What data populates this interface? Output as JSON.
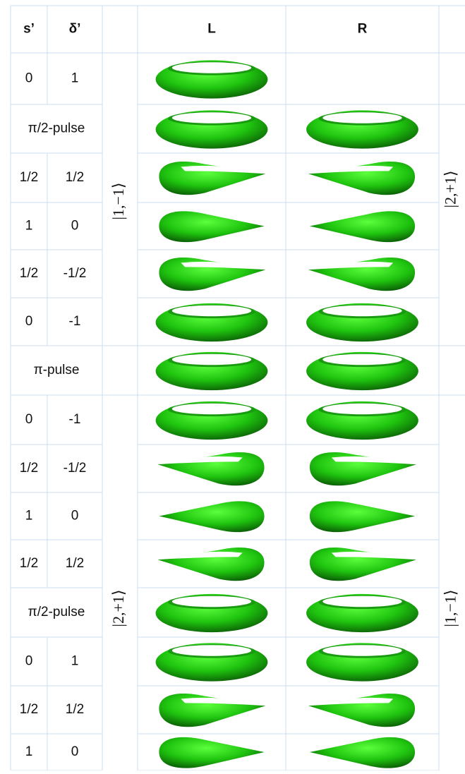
{
  "header": {
    "s": "s’",
    "delta": "δ’",
    "L": "L",
    "R": "R"
  },
  "rows": [
    [
      "0",
      "1"
    ],
    [
      "π/2-pulse"
    ],
    [
      "1/2",
      "1/2"
    ],
    [
      "1",
      "0"
    ],
    [
      "1/2",
      "-1/2"
    ],
    [
      "0",
      "-1"
    ],
    [
      "π-pulse"
    ],
    [
      "0",
      "-1"
    ],
    [
      "1/2",
      "-1/2"
    ],
    [
      "1",
      "0"
    ],
    [
      "1/2",
      "1/2"
    ],
    [
      "π/2-pulse"
    ],
    [
      "0",
      "1"
    ],
    [
      "1/2",
      "1/2"
    ],
    [
      "1",
      "0"
    ]
  ],
  "states": {
    "left": [
      "|1,−1⟩",
      "|2,+1⟩"
    ],
    "right": [
      "|2,+1⟩",
      "|1,−1⟩"
    ]
  }
}
